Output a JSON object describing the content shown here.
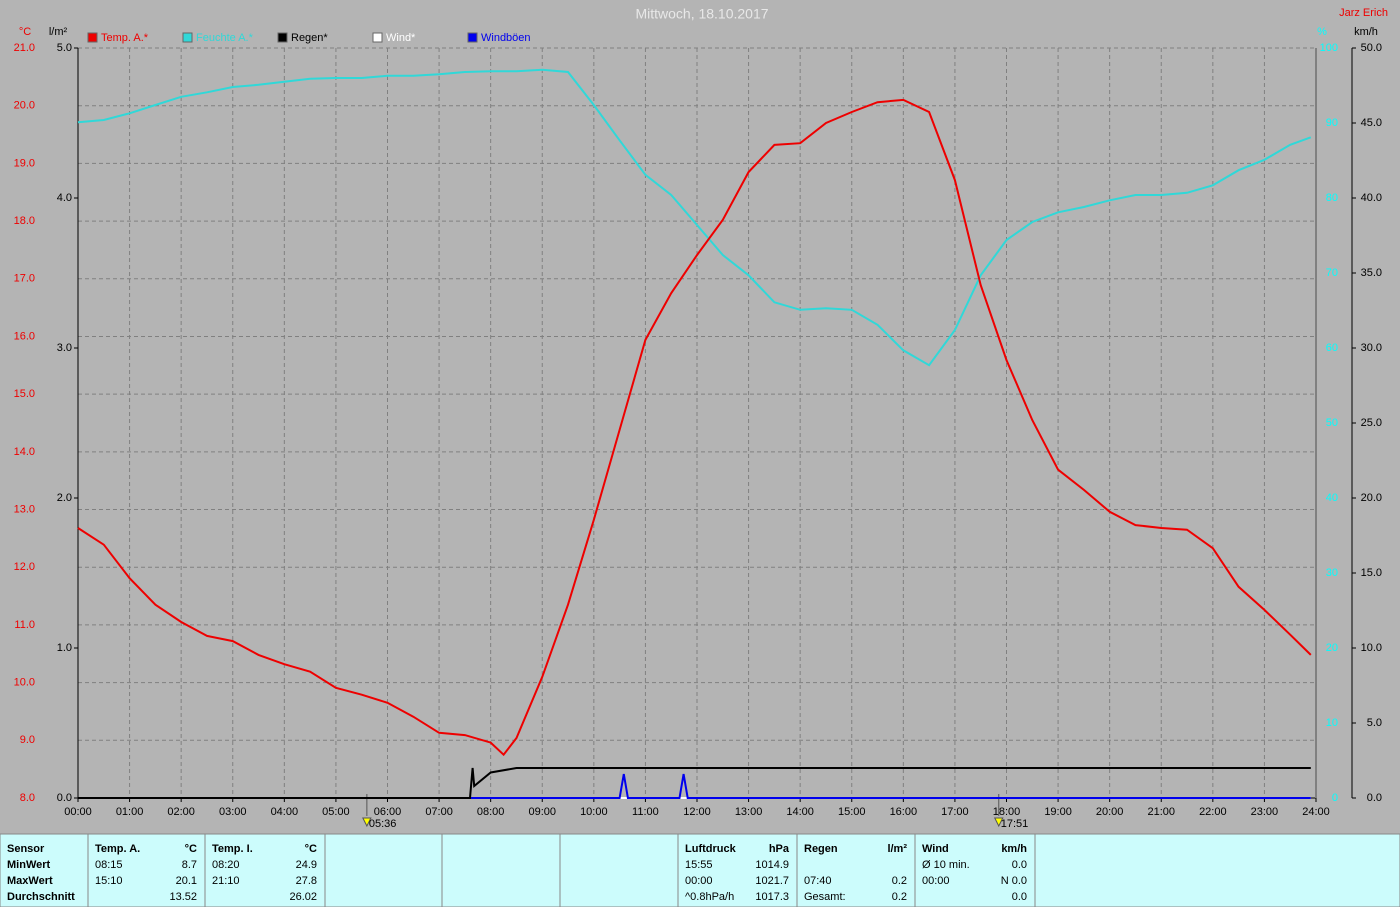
{
  "chart_data": {
    "type": "line",
    "title": "Mittwoch, 18.10.2017",
    "author": "Jarz Erich",
    "xlim": [
      0,
      24
    ],
    "xticks": [
      {
        "value": 0,
        "label": "00:00"
      },
      {
        "value": 1,
        "label": "01:00"
      },
      {
        "value": 2,
        "label": "02:00"
      },
      {
        "value": 3,
        "label": "03:00"
      },
      {
        "value": 4,
        "label": "04:00"
      },
      {
        "value": 5,
        "label": "05:00"
      },
      {
        "value": 6,
        "label": "06:00"
      },
      {
        "value": 7,
        "label": "07:00"
      },
      {
        "value": 8,
        "label": "08:00"
      },
      {
        "value": 9,
        "label": "09:00"
      },
      {
        "value": 10,
        "label": "10:00"
      },
      {
        "value": 11,
        "label": "11:00"
      },
      {
        "value": 12,
        "label": "12:00"
      },
      {
        "value": 13,
        "label": "13:00"
      },
      {
        "value": 14,
        "label": "14:00"
      },
      {
        "value": 15,
        "label": "15:00"
      },
      {
        "value": 16,
        "label": "16:00"
      },
      {
        "value": 17,
        "label": "17:00"
      },
      {
        "value": 18,
        "label": "18:00"
      },
      {
        "value": 19,
        "label": "19:00"
      },
      {
        "value": 20,
        "label": "20:00"
      },
      {
        "value": 21,
        "label": "21:00"
      },
      {
        "value": 22,
        "label": "22:00"
      },
      {
        "value": 23,
        "label": "23:00"
      },
      {
        "value": 24,
        "label": "24:00"
      }
    ],
    "y_unit": "°C",
    "ylim": [
      8,
      21
    ],
    "yticks": [
      {
        "value": 8,
        "label": "8.0"
      },
      {
        "value": 9,
        "label": "9.0"
      },
      {
        "value": 10,
        "label": "10.0"
      },
      {
        "value": 11,
        "label": "11.0"
      },
      {
        "value": 12,
        "label": "12.0"
      },
      {
        "value": 13,
        "label": "13.0"
      },
      {
        "value": 14,
        "label": "14.0"
      },
      {
        "value": 15,
        "label": "15.0"
      },
      {
        "value": 16,
        "label": "16.0"
      },
      {
        "value": 17,
        "label": "17.0"
      },
      {
        "value": 18,
        "label": "18.0"
      },
      {
        "value": 19,
        "label": "19.0"
      },
      {
        "value": 20,
        "label": "20.0"
      },
      {
        "value": 21,
        "label": "21.0"
      }
    ],
    "y2_unit": "l/m²",
    "y2lim": [
      0,
      5
    ],
    "y2ticks": [
      {
        "value": 0,
        "label": "0.0"
      },
      {
        "value": 1,
        "label": "1.0"
      },
      {
        "value": 2,
        "label": "2.0"
      },
      {
        "value": 3,
        "label": "3.0"
      },
      {
        "value": 4,
        "label": "4.0"
      },
      {
        "value": 5,
        "label": "5.0"
      }
    ],
    "y3_unit": "%",
    "y3lim": [
      0,
      100
    ],
    "y3ticks": [
      0,
      10,
      20,
      30,
      40,
      50,
      60,
      70,
      80,
      90,
      100
    ],
    "y4_unit": "km/h",
    "y4lim": [
      0,
      50
    ],
    "y4ticks": [
      {
        "value": 0,
        "label": "0.0"
      },
      {
        "value": 5,
        "label": "5.0"
      },
      {
        "value": 10,
        "label": "10.0"
      },
      {
        "value": 15,
        "label": "15.0"
      },
      {
        "value": 20,
        "label": "20.0"
      },
      {
        "value": 25,
        "label": "25.0"
      },
      {
        "value": 30,
        "label": "30.0"
      },
      {
        "value": 35,
        "label": "35.0"
      },
      {
        "value": 40,
        "label": "40.0"
      },
      {
        "value": 45,
        "label": "45.0"
      },
      {
        "value": 50,
        "label": "50.0"
      }
    ],
    "grid": true,
    "sun_events": [
      {
        "value": 5.6,
        "label": "05:36"
      },
      {
        "value": 17.85,
        "label": "17:51"
      }
    ],
    "series": [
      {
        "name": "Temp. A.*",
        "color": "#ee0000",
        "axis": "y",
        "x": [
          0,
          0.5,
          1,
          1.5,
          2,
          2.5,
          3,
          3.5,
          4,
          4.5,
          5,
          5.5,
          6,
          6.5,
          7,
          7.5,
          8,
          8.25,
          8.5,
          9,
          9.5,
          10,
          10.5,
          11,
          11.5,
          12,
          12.5,
          13,
          13.5,
          14,
          14.5,
          15,
          15.5,
          16,
          16.5,
          17,
          17.5,
          18,
          18.5,
          19,
          19.5,
          20,
          20.5,
          21,
          21.5,
          22,
          22.5,
          23,
          23.5,
          23.9
        ],
        "values": [
          12.68,
          12.39,
          11.81,
          11.35,
          11.05,
          10.81,
          10.72,
          10.48,
          10.32,
          10.19,
          9.91,
          9.79,
          9.65,
          9.41,
          9.13,
          9.09,
          8.96,
          8.75,
          9.04,
          10.1,
          11.35,
          12.82,
          14.38,
          15.94,
          16.75,
          17.41,
          18.02,
          18.85,
          19.32,
          19.35,
          19.7,
          19.89,
          20.06,
          20.1,
          19.89,
          18.71,
          16.89,
          15.59,
          14.55,
          13.69,
          13.34,
          12.96,
          12.73,
          12.68,
          12.65,
          12.33,
          11.66,
          11.26,
          10.83,
          10.48
        ]
      },
      {
        "name": "Feuchte A.*",
        "color": "#30d8d8",
        "axis": "y3",
        "x": [
          0,
          0.5,
          1,
          1.5,
          2,
          2.5,
          3,
          3.5,
          4,
          4.5,
          5,
          5.5,
          6,
          6.5,
          7,
          7.5,
          8,
          8.5,
          9,
          9.5,
          10,
          10.5,
          11,
          11.5,
          12,
          12.5,
          13,
          13.5,
          14,
          14.5,
          15,
          15.5,
          16,
          16.5,
          17,
          17.5,
          18,
          18.5,
          19,
          19.5,
          20,
          20.5,
          21,
          21.5,
          22,
          22.5,
          23,
          23.5,
          23.9
        ],
        "values": [
          90.1,
          90.4,
          91.3,
          92.4,
          93.5,
          94.1,
          94.8,
          95.1,
          95.5,
          95.9,
          96,
          96,
          96.3,
          96.3,
          96.5,
          96.8,
          96.9,
          96.9,
          97.1,
          96.8,
          92.4,
          87.7,
          83.1,
          80.4,
          76.4,
          72.4,
          69.7,
          66.1,
          65.1,
          65.3,
          65.1,
          63.1,
          59.7,
          57.7,
          62.4,
          69.7,
          74.4,
          76.8,
          78.1,
          78.8,
          79.7,
          80.4,
          80.4,
          80.7,
          81.7,
          83.7,
          85.1,
          87.1,
          88.1
        ]
      },
      {
        "name": "Regen*",
        "color": "#000000",
        "axis": "y2",
        "x": [
          0,
          7.6,
          7.65,
          7.68,
          8,
          8.5,
          9,
          23.9
        ],
        "values": [
          0,
          0,
          0.2,
          0.08,
          0.17,
          0.2,
          0.2,
          0.2
        ]
      },
      {
        "name": "Wind*",
        "color": "#ffffff",
        "axis": "y4",
        "x": [
          0,
          23.9
        ],
        "values": [
          0,
          0
        ]
      },
      {
        "name": "Windböen",
        "color": "#0000ee",
        "axis": "y4",
        "x": [
          0,
          10.5,
          10.58,
          10.66,
          11.66,
          11.74,
          11.82,
          23.9
        ],
        "values": [
          0,
          0,
          1.6,
          0,
          0,
          1.6,
          0,
          0
        ]
      }
    ]
  },
  "table": {
    "groups": [
      {
        "rows": [
          [
            "Sensor"
          ],
          [
            "MinWert"
          ],
          [
            "MaxWert"
          ],
          [
            "Durchschnitt"
          ]
        ]
      },
      {
        "rows": [
          [
            "Temp. A.",
            "°C"
          ],
          [
            "08:15",
            "8.7"
          ],
          [
            "15:10",
            "20.1"
          ],
          [
            null,
            "13.52"
          ]
        ]
      },
      {
        "rows": [
          [
            "Temp. I.",
            "°C"
          ],
          [
            "08:20",
            "24.9"
          ],
          [
            "21:10",
            "27.8"
          ],
          [
            null,
            "26.02"
          ]
        ]
      },
      {
        "rows": [
          [
            "Luftdruck",
            "hPa"
          ],
          [
            "15:55",
            "1014.9"
          ],
          [
            "00:00",
            "1021.7"
          ],
          [
            "^0.8hPa/h",
            "1017.3"
          ]
        ]
      },
      {
        "rows": [
          [
            "Regen",
            "l/m²"
          ],
          [
            null,
            null
          ],
          [
            "07:40",
            "0.2"
          ],
          [
            "Gesamt:",
            "0.2"
          ]
        ]
      },
      {
        "rows": [
          [
            "Wind",
            "km/h"
          ],
          [
            "Ø 10 min.",
            "0.0"
          ],
          [
            "00:00",
            "N 0.0"
          ],
          [
            null,
            "0.0"
          ]
        ]
      }
    ]
  }
}
